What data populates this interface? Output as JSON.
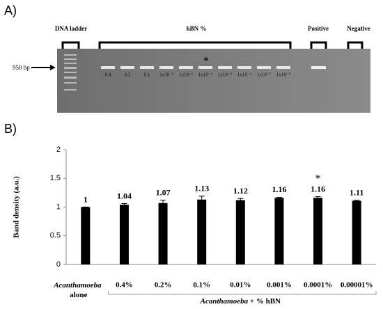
{
  "panel_a": {
    "label": "A)",
    "ladder_label": "DNA ladder",
    "sample_label": "hBN %",
    "positive_label": "Positive",
    "negative_label": "Negative",
    "marker_label": "950 bp",
    "lanes": [
      "0.4",
      "0.2",
      "0.1",
      "1x10⁻²",
      "1x10⁻³",
      "1x10⁻⁴",
      "1x10⁻⁵",
      "1x10⁻⁶",
      "1x10⁻⁷",
      "1x10⁻⁸"
    ],
    "highlight": "*"
  },
  "chart_data": {
    "type": "bar",
    "panel_label": "B)",
    "y_label": "Band density (a.u.)",
    "x_group_label": "Acanthamoeba + % hBN",
    "categories": [
      "Acanthamoeba alone",
      "0.4%",
      "0.2%",
      "0.1%",
      "0.01%",
      "0.001%",
      "0.0001%",
      "0.00001%"
    ],
    "values": [
      1,
      1.04,
      1.07,
      1.13,
      1.12,
      1.16,
      1.16,
      1.11
    ],
    "errors": [
      0,
      0.02,
      0.05,
      0.06,
      0.03,
      0.01,
      0.02,
      0.01
    ],
    "color": "#000000",
    "ylim": [
      0,
      2
    ],
    "yticks": [
      0,
      0.5,
      1,
      1.5,
      2
    ],
    "annotation": {
      "text": "*",
      "category": 6
    }
  }
}
